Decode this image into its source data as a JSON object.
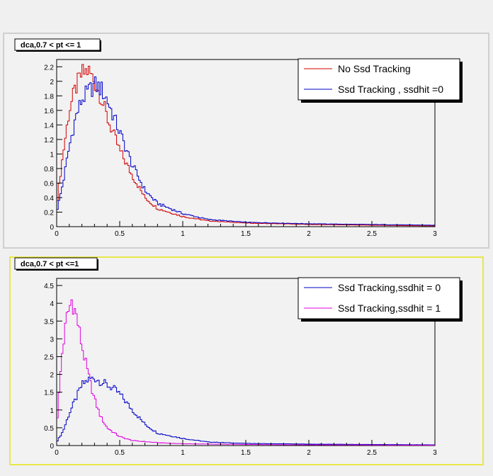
{
  "chart_data": [
    {
      "type": "line",
      "title": "dca,0.7 < pt <= 1",
      "xlim": [
        0,
        3
      ],
      "ylim": [
        0,
        2.3
      ],
      "xticks": [
        "0",
        "0.5",
        "1",
        "1.5",
        "2",
        "2.5",
        "3"
      ],
      "yticks": [
        "0",
        "0.2",
        "0.4",
        "0.6",
        "0.8",
        "1",
        "1.2",
        "1.4",
        "1.6",
        "1.8",
        "2",
        "2.2"
      ],
      "legend_position": "top-right",
      "grid": false,
      "series": [
        {
          "name": "No Ssd Tracking",
          "color": "#d40000",
          "x": [
            0,
            0.05,
            0.1,
            0.15,
            0.2,
            0.25,
            0.3,
            0.35,
            0.4,
            0.5,
            0.6,
            0.7,
            0.8,
            1.0,
            1.2,
            1.5,
            2.0,
            2.5,
            3.0
          ],
          "y": [
            0.3,
            1.0,
            1.6,
            1.9,
            2.1,
            2.15,
            2.0,
            1.8,
            1.5,
            1.05,
            0.7,
            0.4,
            0.25,
            0.14,
            0.08,
            0.05,
            0.03,
            0.02,
            0.01
          ]
        },
        {
          "name": "Ssd Tracking , ssdhit =0",
          "color": "#0000c8",
          "x": [
            0,
            0.05,
            0.1,
            0.15,
            0.2,
            0.25,
            0.3,
            0.35,
            0.4,
            0.5,
            0.6,
            0.7,
            0.8,
            1.0,
            1.2,
            1.5,
            2.0,
            2.5,
            3.0
          ],
          "y": [
            0.2,
            0.6,
            1.1,
            1.5,
            1.75,
            1.85,
            1.95,
            1.9,
            1.75,
            1.3,
            0.85,
            0.5,
            0.32,
            0.18,
            0.1,
            0.06,
            0.04,
            0.03,
            0.02
          ]
        }
      ]
    },
    {
      "type": "line",
      "title": "dca,0.7 < pt <=1",
      "xlim": [
        0,
        3
      ],
      "ylim": [
        0,
        4.7
      ],
      "xticks": [
        "0",
        "0.5",
        "1",
        "1.5",
        "2",
        "2.5",
        "3"
      ],
      "yticks": [
        "0",
        "0.5",
        "1",
        "1.5",
        "2",
        "2.5",
        "3",
        "3.5",
        "4",
        "4.5"
      ],
      "legend_position": "top-right",
      "grid": false,
      "series": [
        {
          "name": "Ssd Tracking,ssdhit = 0",
          "color": "#0000c8",
          "x": [
            0,
            0.05,
            0.1,
            0.15,
            0.2,
            0.25,
            0.3,
            0.35,
            0.4,
            0.45,
            0.5,
            0.6,
            0.7,
            0.8,
            1.0,
            1.2,
            1.5,
            2.0,
            2.5,
            3.0
          ],
          "y": [
            0.1,
            0.4,
            0.9,
            1.3,
            1.7,
            1.85,
            1.9,
            1.8,
            1.7,
            1.6,
            1.45,
            1.0,
            0.6,
            0.35,
            0.2,
            0.1,
            0.06,
            0.04,
            0.03,
            0.02
          ]
        },
        {
          "name": "Ssd Tracking,ssdhit = 1",
          "color": "#e000e0",
          "x": [
            0,
            0.04,
            0.08,
            0.12,
            0.16,
            0.2,
            0.25,
            0.3,
            0.35,
            0.4,
            0.5,
            0.6,
            0.8,
            1.0,
            1.5,
            2.0,
            3.0
          ],
          "y": [
            0.5,
            2.5,
            3.6,
            4.1,
            3.6,
            2.8,
            2.0,
            1.3,
            0.8,
            0.5,
            0.25,
            0.14,
            0.08,
            0.05,
            0.03,
            0.02,
            0.01
          ]
        }
      ]
    }
  ]
}
